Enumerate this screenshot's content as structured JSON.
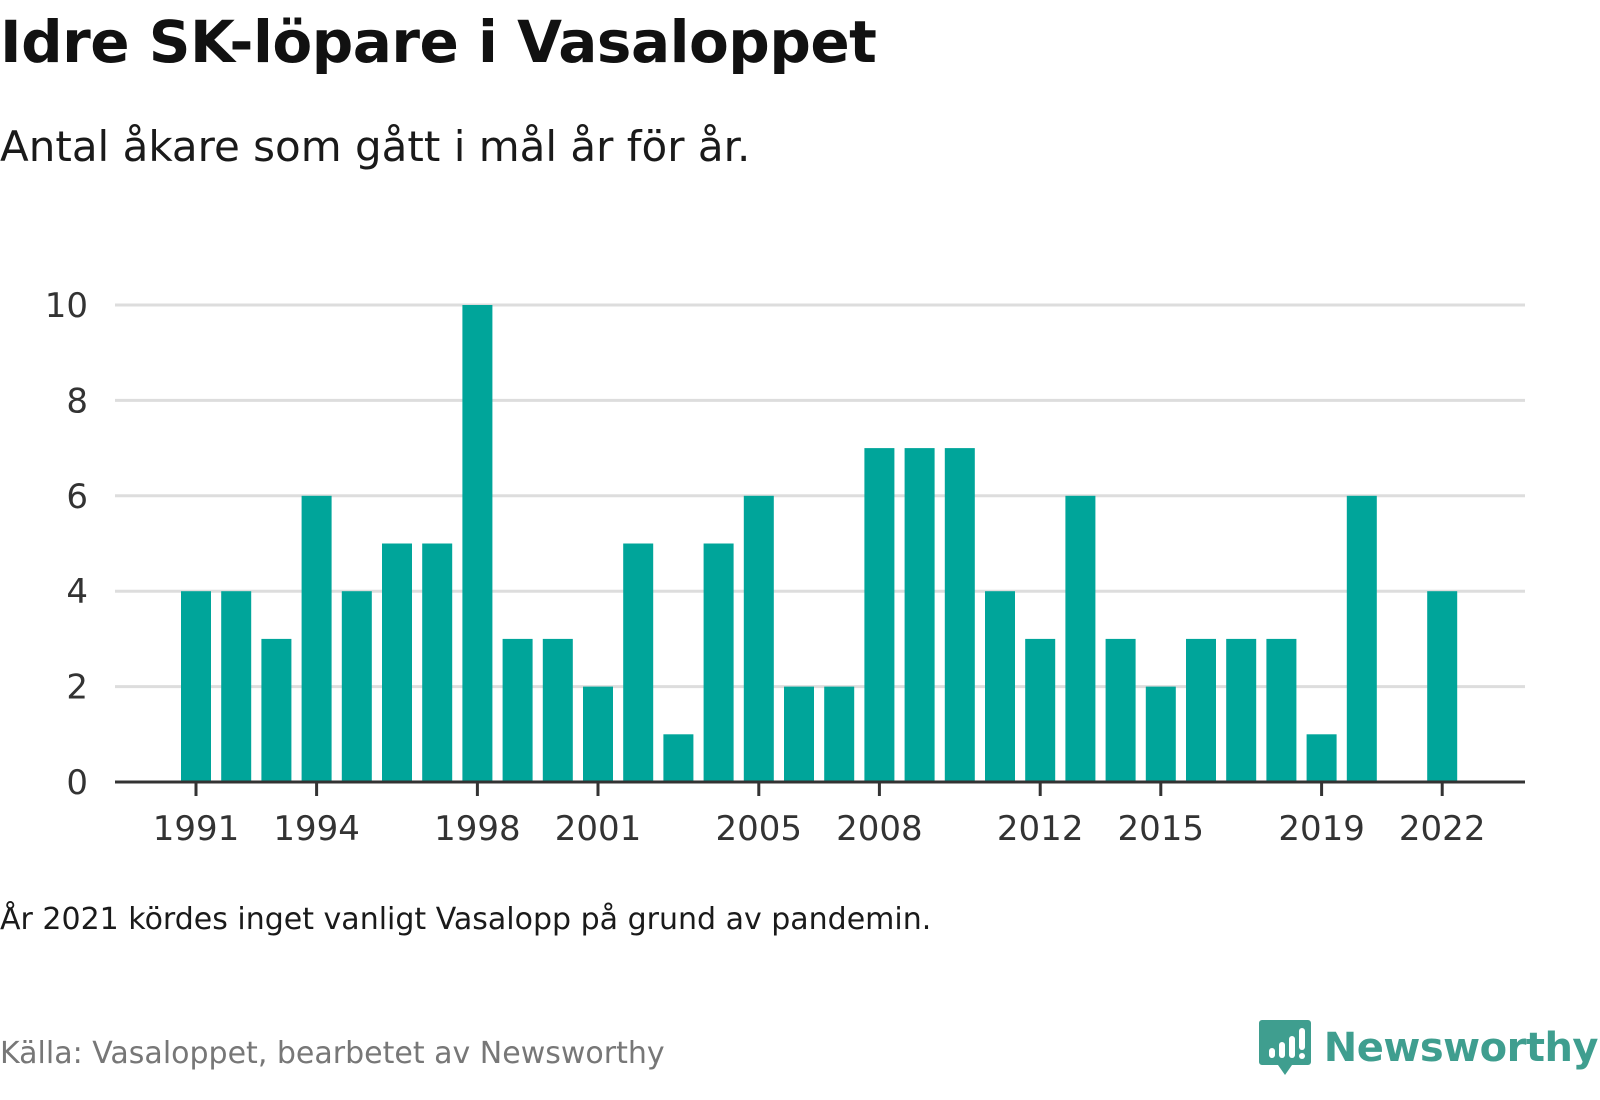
{
  "header": {
    "title": "Idre SK-löpare i Vasaloppet",
    "subtitle": "Antal åkare som gått i mål år för år."
  },
  "footer": {
    "note": "År 2021 kördes inget vanligt Vasalopp på grund av pandemin.",
    "source": "Källa: Vasaloppet, bearbetet av Newsworthy",
    "brand": "Newsworthy"
  },
  "colors": {
    "bar": "#00a59a",
    "grid": "#dddddd",
    "axis": "#333333",
    "brand": "#3f9e8f"
  },
  "icons": {
    "brand_logo": "newsworthy-chart-bubble-icon"
  },
  "chart_data": {
    "type": "bar",
    "title": "Idre SK-löpare i Vasaloppet",
    "subtitle": "Antal åkare som gått i mål år för år.",
    "categories": [
      1991,
      1992,
      1993,
      1994,
      1995,
      1996,
      1997,
      1998,
      1999,
      2000,
      2001,
      2002,
      2003,
      2004,
      2005,
      2006,
      2007,
      2008,
      2009,
      2010,
      2011,
      2012,
      2013,
      2014,
      2015,
      2016,
      2017,
      2018,
      2019,
      2020,
      2021,
      2022
    ],
    "values": [
      4,
      4,
      3,
      6,
      4,
      5,
      5,
      10,
      3,
      3,
      2,
      5,
      1,
      5,
      6,
      2,
      2,
      7,
      7,
      7,
      4,
      3,
      6,
      3,
      2,
      3,
      3,
      3,
      1,
      6,
      null,
      4
    ],
    "x_tick_labels": [
      "1991",
      "1994",
      "1998",
      "2001",
      "2005",
      "2008",
      "2012",
      "2015",
      "2019",
      "2022"
    ],
    "y_tick_labels": [
      "0",
      "2",
      "4",
      "6",
      "8",
      "10"
    ],
    "xlabel": "",
    "ylabel": "",
    "ylim": [
      0,
      10
    ],
    "grid": true,
    "legend": "none"
  }
}
